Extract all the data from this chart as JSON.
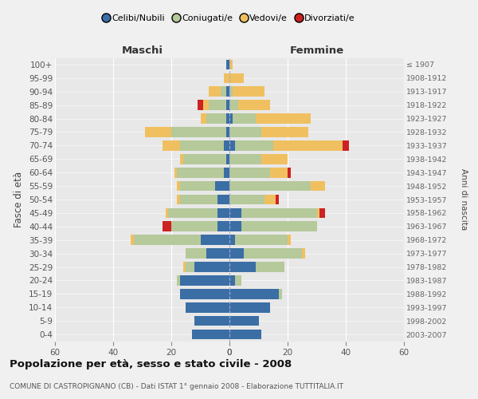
{
  "age_groups": [
    "100+",
    "95-99",
    "90-94",
    "85-89",
    "80-84",
    "75-79",
    "70-74",
    "65-69",
    "60-64",
    "55-59",
    "50-54",
    "45-49",
    "40-44",
    "35-39",
    "30-34",
    "25-29",
    "20-24",
    "15-19",
    "10-14",
    "5-9",
    "0-4"
  ],
  "birth_years": [
    "≤ 1907",
    "1908-1912",
    "1913-1917",
    "1918-1922",
    "1923-1927",
    "1928-1932",
    "1933-1937",
    "1938-1942",
    "1943-1947",
    "1948-1952",
    "1953-1957",
    "1958-1962",
    "1963-1967",
    "1968-1972",
    "1973-1977",
    "1978-1982",
    "1983-1987",
    "1988-1992",
    "1993-1997",
    "1998-2002",
    "2003-2007"
  ],
  "colors": {
    "celibi": "#3a6ea5",
    "coniugati": "#b5c99a",
    "vedovi": "#f0c060",
    "divorziati": "#cc2222"
  },
  "males": {
    "celibi": [
      1,
      0,
      1,
      1,
      1,
      1,
      2,
      1,
      2,
      5,
      4,
      4,
      4,
      10,
      8,
      12,
      17,
      17,
      15,
      12,
      13
    ],
    "coniugati": [
      0,
      0,
      2,
      6,
      7,
      19,
      15,
      15,
      16,
      12,
      13,
      17,
      16,
      23,
      7,
      3,
      1,
      0,
      0,
      0,
      0
    ],
    "vedovi": [
      0,
      2,
      4,
      2,
      2,
      9,
      6,
      1,
      1,
      1,
      1,
      1,
      0,
      1,
      0,
      1,
      0,
      0,
      0,
      0,
      0
    ],
    "divorziati": [
      0,
      0,
      0,
      2,
      0,
      0,
      0,
      0,
      0,
      0,
      0,
      0,
      3,
      0,
      0,
      0,
      0,
      0,
      0,
      0,
      0
    ]
  },
  "females": {
    "celibi": [
      0,
      0,
      0,
      0,
      1,
      0,
      2,
      0,
      0,
      0,
      0,
      4,
      4,
      2,
      5,
      9,
      2,
      17,
      14,
      10,
      11
    ],
    "coniugati": [
      0,
      0,
      1,
      3,
      8,
      11,
      13,
      11,
      14,
      28,
      12,
      26,
      26,
      18,
      20,
      10,
      2,
      1,
      0,
      0,
      0
    ],
    "vedovi": [
      1,
      5,
      11,
      11,
      19,
      16,
      24,
      9,
      6,
      5,
      4,
      1,
      0,
      1,
      1,
      0,
      0,
      0,
      0,
      0,
      0
    ],
    "divorziati": [
      0,
      0,
      0,
      0,
      0,
      0,
      2,
      0,
      1,
      0,
      1,
      2,
      0,
      0,
      0,
      0,
      0,
      0,
      0,
      0,
      0
    ]
  },
  "title": "Popolazione per età, sesso e stato civile - 2008",
  "subtitle": "COMUNE DI CASTROPIGNANO (CB) - Dati ISTAT 1° gennaio 2008 - Elaborazione TUTTITALIA.IT",
  "xlabel_maschi": "Maschi",
  "xlabel_femmine": "Femmine",
  "ylabel": "Fasce di età",
  "ylabel_right": "Anni di nascita",
  "xlim": 60,
  "legend_labels": [
    "Celibi/Nubili",
    "Coniugati/e",
    "Vedovi/e",
    "Divorziati/e"
  ],
  "bg_color": "#f0f0f0",
  "plot_bg": "#e8e8e8",
  "bar_height": 0.75
}
